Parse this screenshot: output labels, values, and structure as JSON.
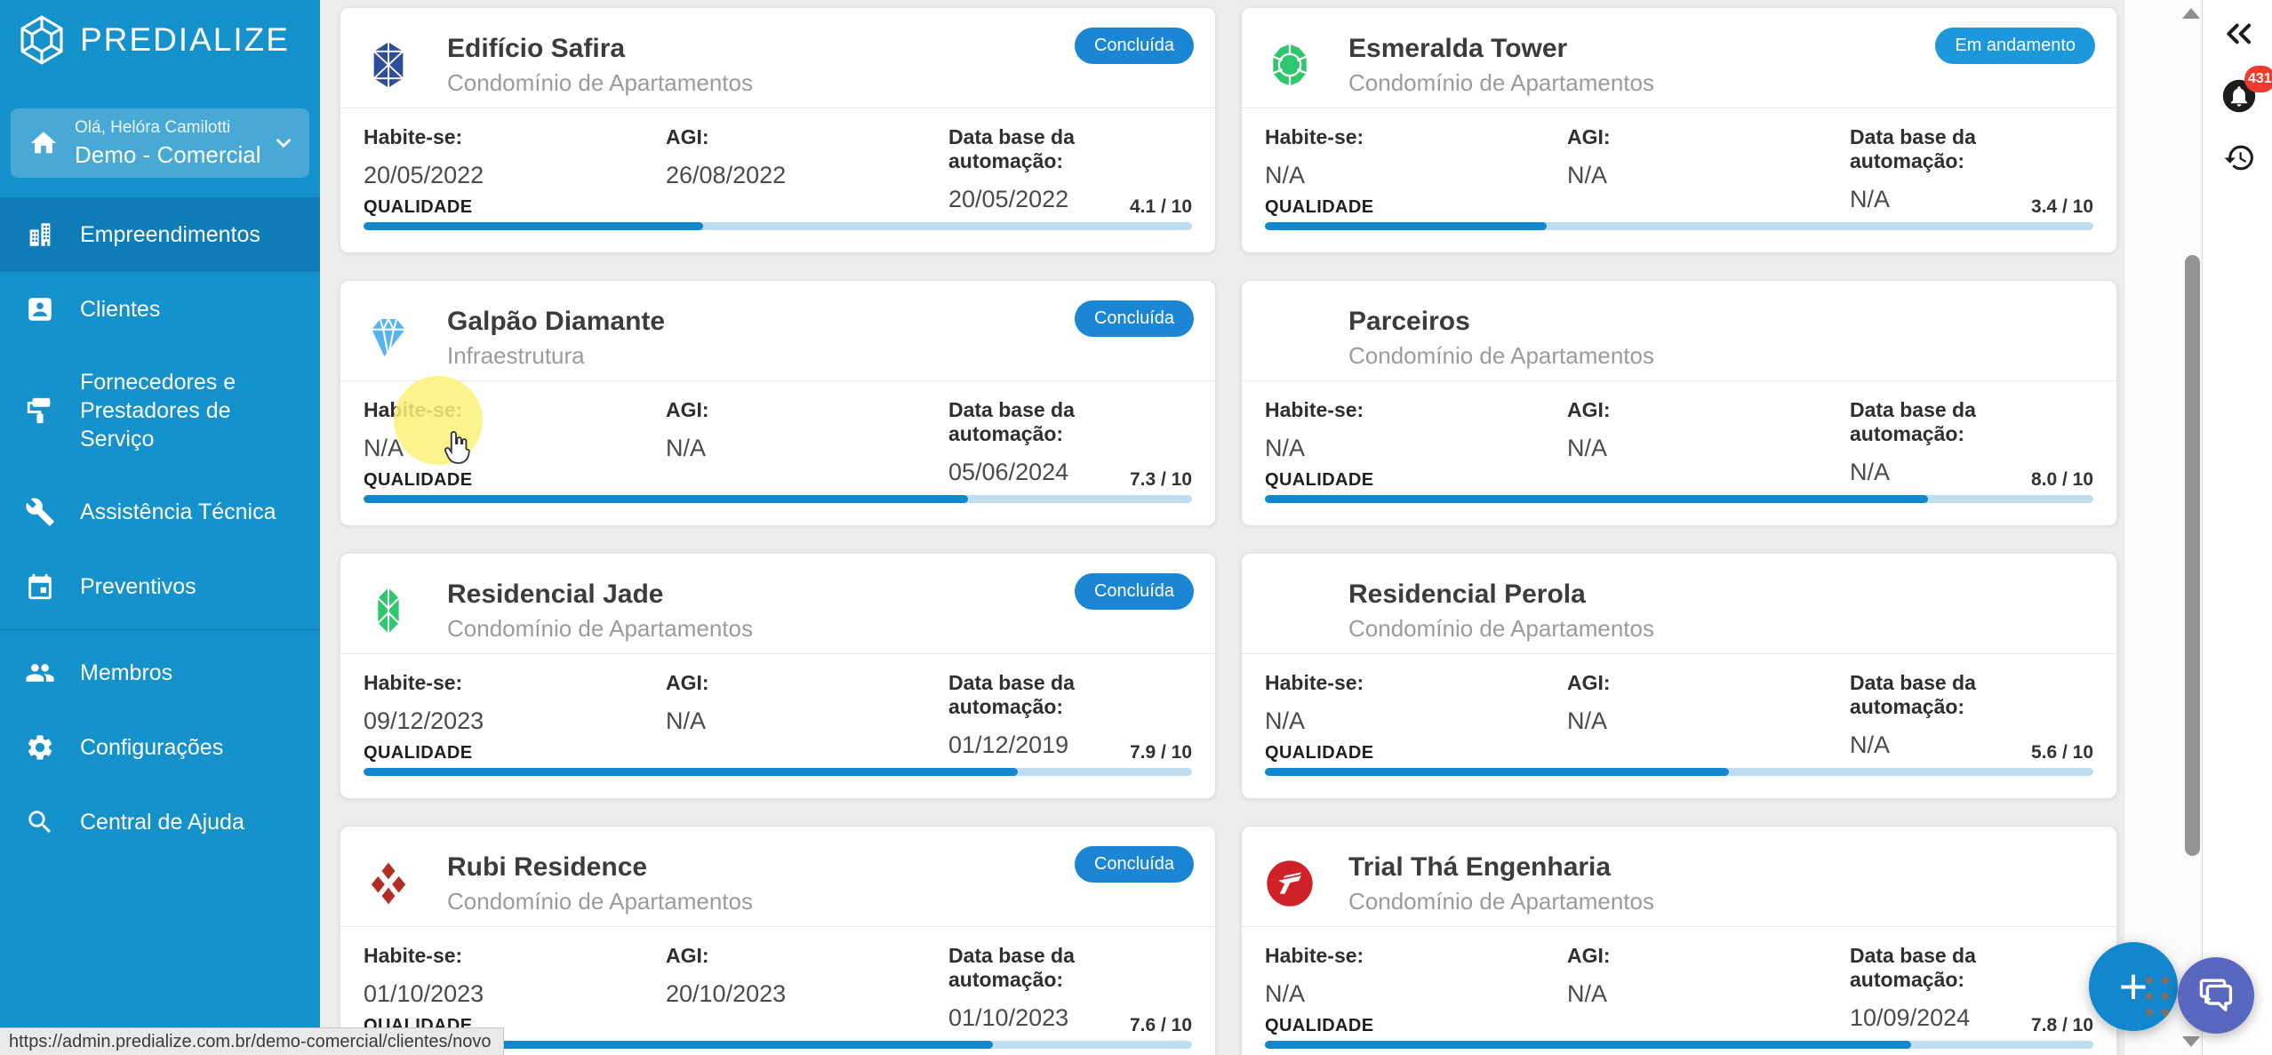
{
  "app": {
    "title": "PREDIALIZE"
  },
  "sidebar": {
    "logo_text": "PREDIALIZE",
    "user": {
      "greeting": "Olá, Helóra Camilotti",
      "account": "Demo - Comercial"
    },
    "items": [
      {
        "label": "Empreendimentos",
        "icon": "buildings-icon",
        "active": true
      },
      {
        "label": "Clientes",
        "icon": "client-badge-icon",
        "active": false
      },
      {
        "label": "Fornecedores e Prestadores de Serviço",
        "icon": "paint-roller-icon",
        "active": false
      },
      {
        "label": "Assistência Técnica",
        "icon": "wrench-icon",
        "active": false
      },
      {
        "label": "Preventivos",
        "icon": "calendar-icon",
        "active": false
      },
      {
        "label": "Membros",
        "icon": "people-icon",
        "active": false,
        "divider_before": true
      },
      {
        "label": "Configurações",
        "icon": "gear-icon",
        "active": false
      },
      {
        "label": "Central de Ajuda",
        "icon": "search-icon",
        "active": false
      }
    ]
  },
  "field_labels": {
    "habite": "Habite-se:",
    "agi": "AGI:",
    "database": "Data base da automação:",
    "quality": "QUALIDADE"
  },
  "cards": [
    {
      "title": "Edifício Safira",
      "subtitle": "Condomínio de Apartamentos",
      "status": "Concluída",
      "status_color": "#1b86d3",
      "icon": "sapphire-gem-icon",
      "habite": "20/05/2022",
      "agi": "26/08/2022",
      "database": "20/05/2022",
      "quality": 4.1,
      "quality_label": "4.1 / 10"
    },
    {
      "title": "Esmeralda Tower",
      "subtitle": "Condomínio de Apartamentos",
      "status": "Em andamento",
      "status_color": "#1e98dc",
      "icon": "emerald-gem-icon",
      "habite": "N/A",
      "agi": "N/A",
      "database": "N/A",
      "quality": 3.4,
      "quality_label": "3.4 / 10"
    },
    {
      "title": "Galpão Diamante",
      "subtitle": "Infraestrutura",
      "status": "Concluída",
      "status_color": "#1b86d3",
      "icon": "diamond-gem-icon",
      "habite": "N/A",
      "agi": "N/A",
      "database": "05/06/2024",
      "quality": 7.3,
      "quality_label": "7.3 / 10"
    },
    {
      "title": "Parceiros",
      "subtitle": "Condomínio de Apartamentos",
      "status": null,
      "status_color": null,
      "icon": "none",
      "habite": "N/A",
      "agi": "N/A",
      "database": "N/A",
      "quality": 8.0,
      "quality_label": "8.0 / 10"
    },
    {
      "title": "Residencial Jade",
      "subtitle": "Condomínio de Apartamentos",
      "status": "Concluída",
      "status_color": "#1b86d3",
      "icon": "jade-gem-icon",
      "habite": "09/12/2023",
      "agi": "N/A",
      "database": "01/12/2019",
      "quality": 7.9,
      "quality_label": "7.9 / 10"
    },
    {
      "title": "Residencial Perola",
      "subtitle": "Condomínio de Apartamentos",
      "status": null,
      "status_color": null,
      "icon": "none",
      "habite": "N/A",
      "agi": "N/A",
      "database": "N/A",
      "quality": 5.6,
      "quality_label": "5.6 / 10"
    },
    {
      "title": "Rubi Residence",
      "subtitle": "Condomínio de Apartamentos",
      "status": "Concluída",
      "status_color": "#1b86d3",
      "icon": "ruby-gem-icon",
      "habite": "01/10/2023",
      "agi": "20/10/2023",
      "database": "01/10/2023",
      "quality": 7.6,
      "quality_label": "7.6 / 10"
    },
    {
      "title": "Trial Thá Engenharia",
      "subtitle": "Condomínio de Apartamentos",
      "status": null,
      "status_color": null,
      "icon": "tha-logo-icon",
      "habite": "N/A",
      "agi": "N/A",
      "database": "10/09/2024",
      "quality": 7.8,
      "quality_label": "7.8 / 10"
    }
  ],
  "right_rail": {
    "notifications_count": "431"
  },
  "fabs": {
    "add_label": "+"
  },
  "statusbar": {
    "url": "https://admin.predialize.com.br/demo-comercial/clientes/novo"
  },
  "colors": {
    "sidebar": "#1591cc",
    "sidebar_active": "#0d7cb7",
    "progress_fill": "#1287cd",
    "progress_track": "#bfddf0",
    "badge_concluida": "#1b86d3",
    "badge_em_andamento": "#1e98dc",
    "fab_add": "#1287cd",
    "fab_chat": "#5a67bf",
    "notification_red": "#ef3a2d",
    "main_background": "#ededed"
  }
}
